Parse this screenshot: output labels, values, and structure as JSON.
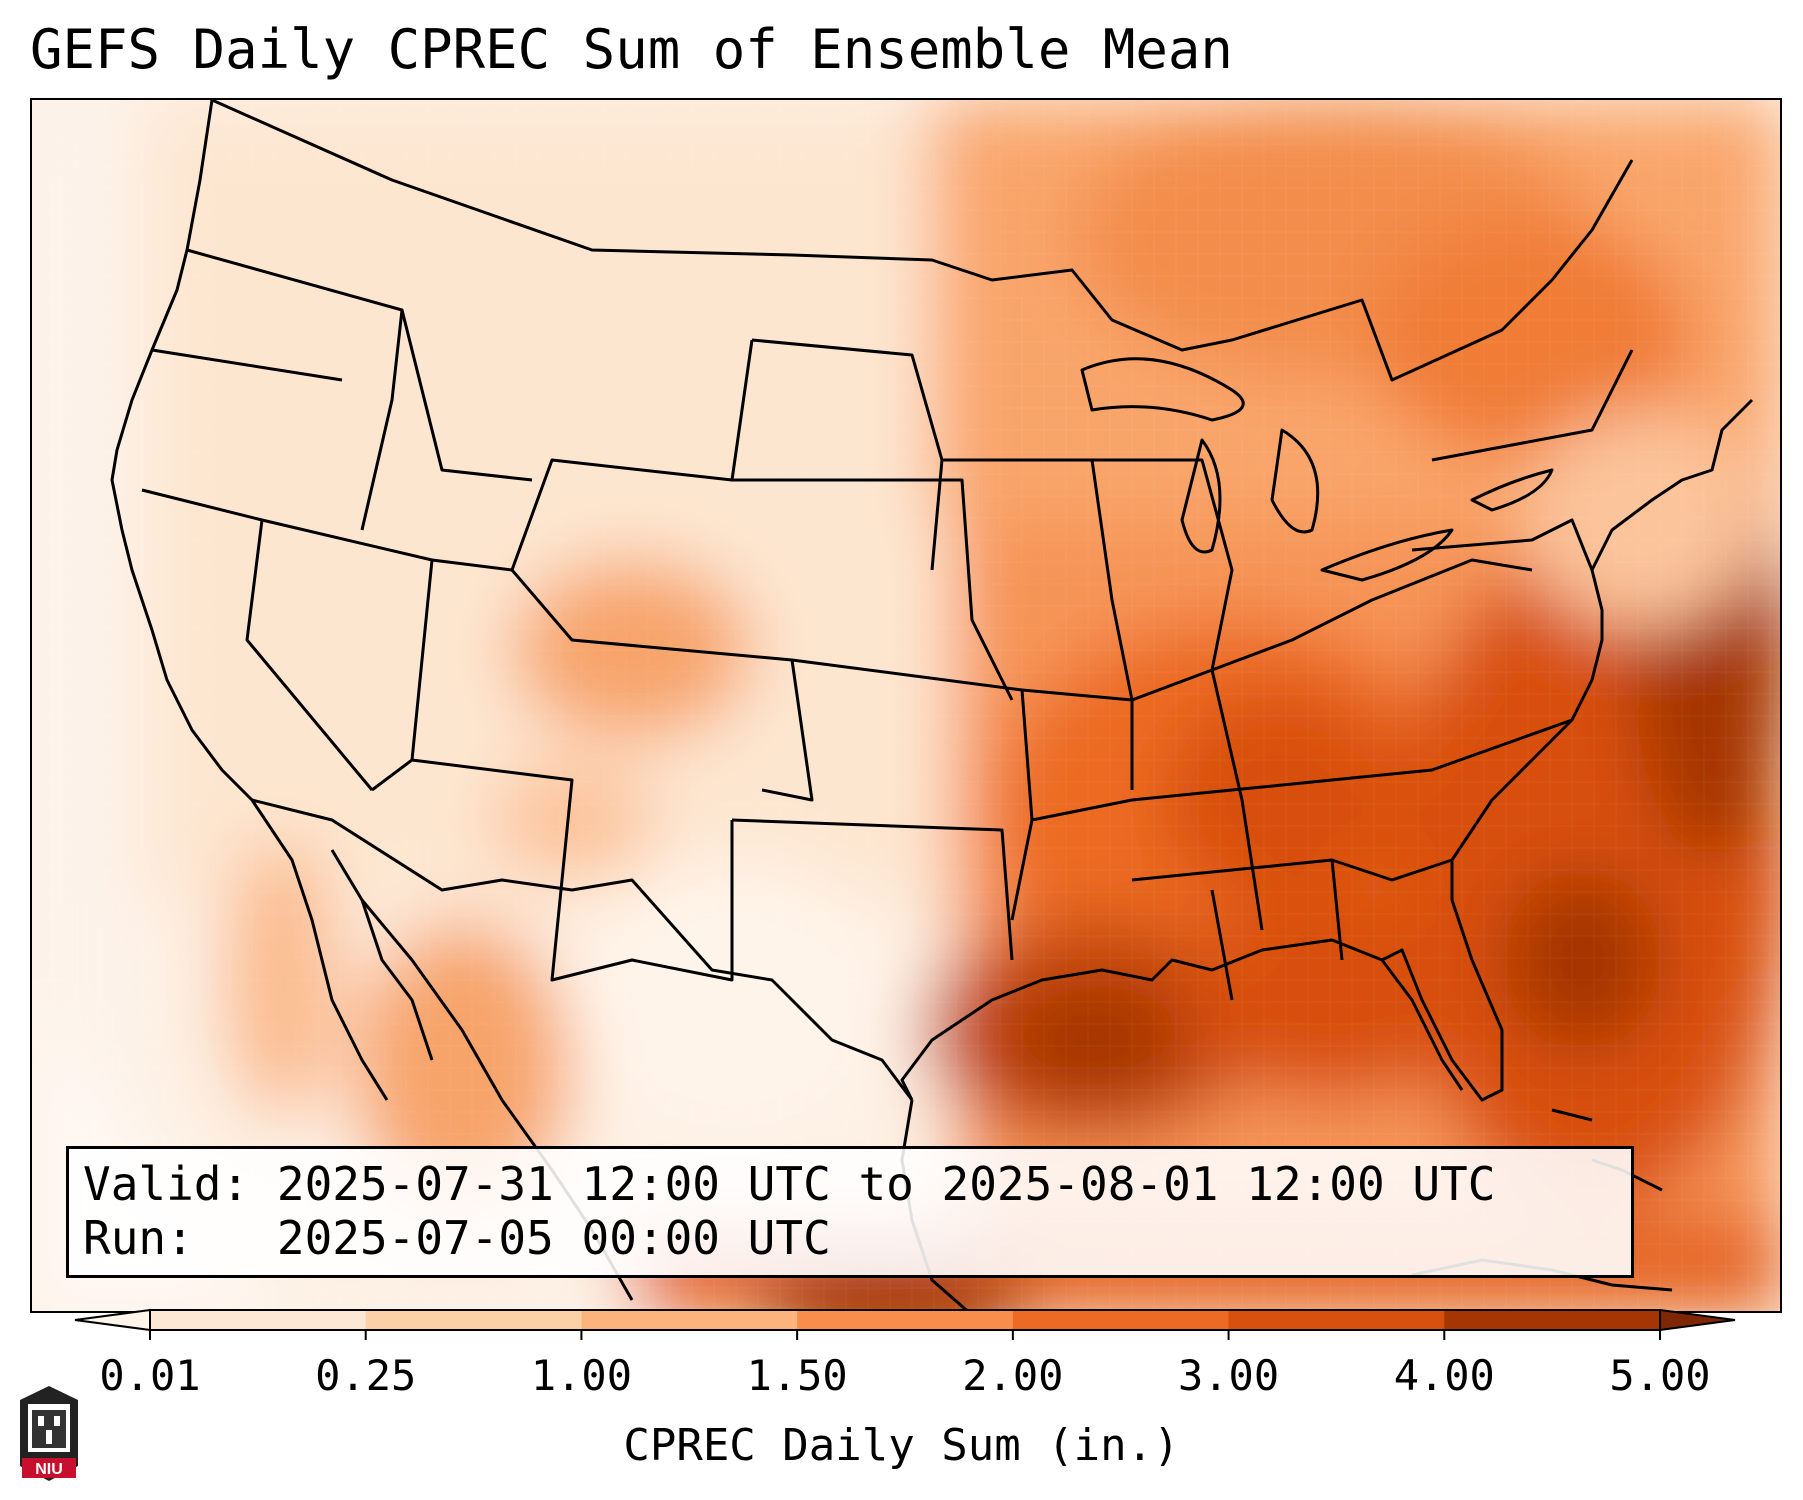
{
  "title": "GEFS Daily CPREC Sum of Ensemble Mean",
  "info": {
    "valid_label": "Valid:",
    "valid_value": "2025-07-31 12:00 UTC to 2025-08-01 12:00 UTC",
    "run_label": "Run:",
    "run_value": "2025-07-05 00:00 UTC"
  },
  "colorbar": {
    "label": "CPREC Daily Sum (in.)",
    "ticks": [
      "0.01",
      "0.25",
      "1.00",
      "1.50",
      "2.00",
      "3.00",
      "4.00",
      "5.00"
    ],
    "colors": [
      "#fde8d5",
      "#fdd1a8",
      "#fdb37c",
      "#f98d4c",
      "#ec6a23",
      "#d8500e",
      "#a53603"
    ],
    "under_color": "#fff5eb",
    "over_color": "#7f2704",
    "extend": "both"
  },
  "logo": {
    "text": "NIU",
    "color": "#c8102e"
  }
}
